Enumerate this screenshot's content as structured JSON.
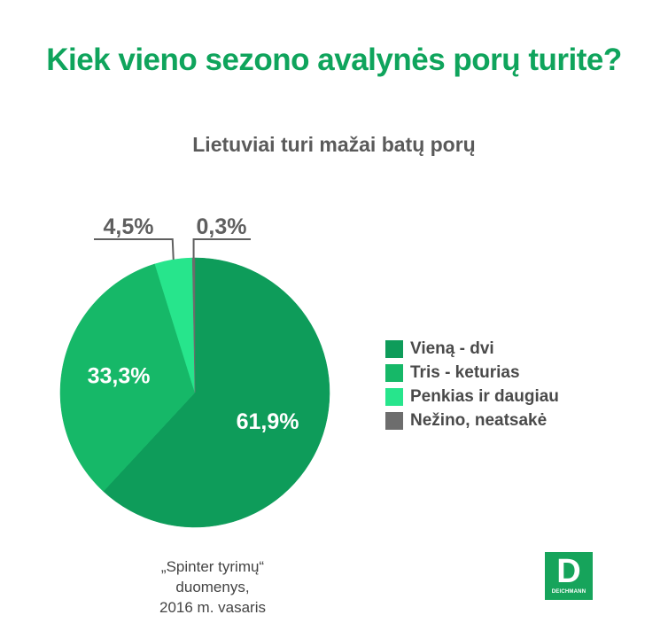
{
  "title": "Kiek vieno sezono avalynės porų turite?",
  "chart_data": {
    "type": "pie",
    "title": "Lietuviai turi mažai batų porų",
    "categories": [
      "Vieną - dvi",
      "Tris - keturias",
      "Penkias ir daugiau",
      "Nežino, neatsakė"
    ],
    "values": [
      61.9,
      33.3,
      4.5,
      0.3
    ],
    "labels": [
      "61,9%",
      "33,3%",
      "4,5%",
      "0,3%"
    ],
    "colors": [
      "#0e9c5a",
      "#16b868",
      "#27e58c",
      "#6d6d6d"
    ],
    "legend": "right"
  },
  "source": {
    "line1": "„Spinter tyrimų“ duomenys,",
    "line2": "2016 m. vasaris"
  },
  "logo": {
    "letter": "D",
    "text": "DEICHMANN",
    "color": "#16a45b"
  }
}
